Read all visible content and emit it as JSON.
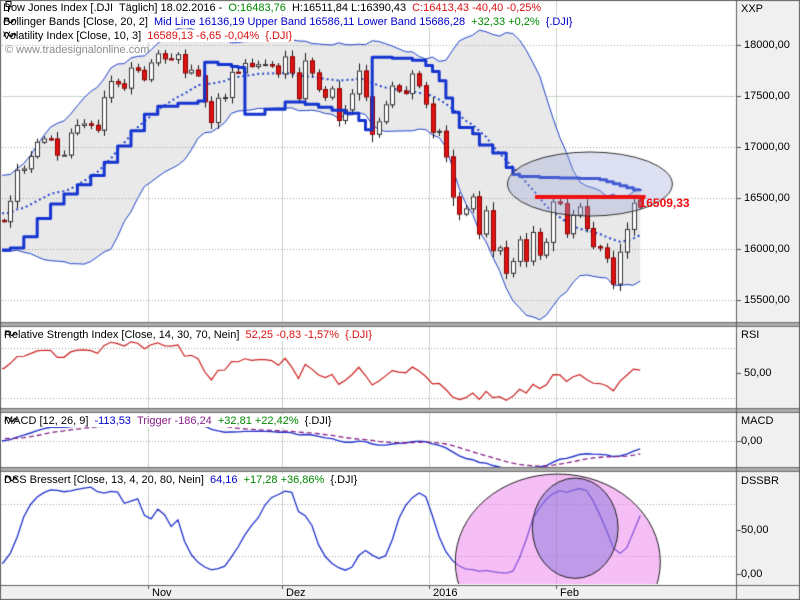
{
  "window_title": "Dow Jones Index [.DJI] Tradesignal Chart",
  "header": {
    "lines": [
      {
        "name": "symbol-header",
        "icon": "pin-icon",
        "segments": [
          {
            "t": "Dow Jones Index [.DJI  Täglich] 18.02.2016 - ",
            "c": "#000000"
          },
          {
            "t": "O:16483,76 ",
            "c": "#008800"
          },
          {
            "t": "H:16511,84 L:16390,43 ",
            "c": "#000000"
          },
          {
            "t": "C:16413,43 -40,40 -0,25%",
            "c": "#dd1111"
          }
        ]
      },
      {
        "name": "bollinger-header",
        "icon": "wave-icon",
        "segments": [
          {
            "t": "Bollinger Bands [Close, 20, 2] ",
            "c": "#000000"
          },
          {
            "t": "Mid Line 16136,19 Upper Band 16586,11 Lower Band 15686,28 ",
            "c": "#0000cc"
          },
          {
            "t": "+32,33 +0,2% ",
            "c": "#008800"
          },
          {
            "t": "{.DJI}",
            "c": "#0000cc"
          }
        ]
      },
      {
        "name": "volatility-header",
        "icon": "wave-icon",
        "segments": [
          {
            "t": "Volatility Index [Close, 10, 3] ",
            "c": "#000000"
          },
          {
            "t": "16589,13 -6,65 -0,04% ",
            "c": "#dd1111"
          },
          {
            "t": "{.DJI}",
            "c": "#dd1111"
          }
        ]
      },
      {
        "name": "copyright",
        "icon": null,
        "segments": [
          {
            "t": "© www.tradesignalonline.com",
            "c": "#8a8a8a"
          }
        ]
      }
    ]
  },
  "panel_headers": {
    "rsi": {
      "name": "rsi-header",
      "icon": "wave-icon",
      "segments": [
        {
          "t": "Relative Strength Index [Close, 14, 30, 70, Nein] ",
          "c": "#000000"
        },
        {
          "t": "52,25 -0,83 -1,57% ",
          "c": "#dd1111"
        },
        {
          "t": "{.DJI}",
          "c": "#dd1111"
        }
      ]
    },
    "macd": {
      "name": "macd-header",
      "icon": "wave-icon",
      "segments": [
        {
          "t": "MACD [12, 26, 9] ",
          "c": "#000000"
        },
        {
          "t": "-113,53 ",
          "c": "#0000cc"
        },
        {
          "t": "Trigger -186,24 ",
          "c": "#882288"
        },
        {
          "t": "+32,81 +22,42% ",
          "c": "#008800"
        },
        {
          "t": "{.DJI}",
          "c": "#000000"
        }
      ]
    },
    "dss": {
      "name": "dss-header",
      "icon": "wave-icon",
      "segments": [
        {
          "t": "DSS Bressert [Close, 13, 4, 20, 80, Nein] ",
          "c": "#000000"
        },
        {
          "t": "64,16 ",
          "c": "#0000cc"
        },
        {
          "t": "+17,28 +36,86% ",
          "c": "#008800"
        },
        {
          "t": "{.DJI}",
          "c": "#000000"
        }
      ]
    }
  },
  "axes": {
    "price": {
      "corner_label": "XXP",
      "ticks": [
        {
          "t": "18000,00",
          "v": 18000
        },
        {
          "t": "17500,00",
          "v": 17500
        },
        {
          "t": "17000,00",
          "v": 17000
        },
        {
          "t": "16500,00",
          "v": 16500
        },
        {
          "t": "16000,00",
          "v": 16000
        },
        {
          "t": "15500,00",
          "v": 15500
        }
      ]
    },
    "rsi": {
      "label": "RSI",
      "ticks": [
        {
          "t": "50,00",
          "v": 50
        }
      ],
      "dotted_levels": [
        70,
        30
      ]
    },
    "macd": {
      "label": "MACD",
      "ticks": [
        {
          "t": "0,00",
          "v": 0
        }
      ],
      "dotted_levels": [
        0
      ]
    },
    "dss": {
      "label": "DSSBR",
      "ticks": [
        {
          "t": "50,00",
          "v": 50
        },
        {
          "t": "0,00",
          "v": 0
        }
      ],
      "dotted_levels": [
        80,
        20
      ]
    },
    "time": {
      "labels": [
        {
          "t": "Nov",
          "i": 22.5
        },
        {
          "t": "Dez",
          "i": 42.5
        },
        {
          "t": "2016",
          "i": 64.5
        },
        {
          "t": "Feb",
          "i": 83.5
        }
      ]
    }
  },
  "chart_data": {
    "type": "candlestick",
    "symbol": "Dow Jones Index [.DJI] Täglich",
    "date_last": "18.02.2016",
    "last_ohlc": {
      "o": 16483.76,
      "h": 16511.84,
      "l": 16390.43,
      "c": 16413.43
    },
    "price_range": [
      15500,
      18000
    ],
    "seed_closes": [
      16058,
      16351,
      16375,
      16102,
      16492,
      16253,
      16330,
      16433,
      16370,
      16599,
      16740,
      16675,
      16385,
      16510,
      16330,
      16280,
      16201,
      16315,
      16002,
      16049
    ],
    "closes": [
      16285,
      16272,
      16472,
      16776,
      16790,
      16912,
      17051,
      17084,
      17082,
      16924,
      16925,
      17141,
      17216,
      17231,
      17217,
      17169,
      17489,
      17647,
      17623,
      17581,
      17779,
      17756,
      17664,
      17829,
      17918,
      17868,
      17863,
      17910,
      17730,
      17758,
      17702,
      17448,
      17245,
      17483,
      17490,
      17737,
      17732,
      17824,
      17793,
      17812,
      17813,
      17798,
      17720,
      17888,
      17730,
      17478,
      17848,
      17730,
      17568,
      17492,
      17575,
      17265,
      17369,
      17525,
      17749,
      17496,
      17129,
      17252,
      17418,
      17603,
      17552,
      17529,
      17721,
      17604,
      17425,
      17149,
      17159,
      16907,
      16514,
      16346,
      16398,
      16516,
      16151,
      16379,
      15988,
      16016,
      15767,
      15883,
      16094,
      15885,
      16167,
      15944,
      16070,
      16466,
      16449,
      16154,
      16337,
      16417,
      16205,
      16027,
      16014,
      15915,
      15660,
      15974,
      16196,
      16454,
      16413
    ],
    "indicators": {
      "bollinger": {
        "period": 20,
        "mult": 2,
        "mid": 16136.19,
        "upper": 16586.11,
        "lower": 15686.28
      },
      "volatility_index": {
        "period": 10,
        "mult": 3,
        "value": 16589.13
      },
      "rsi": {
        "period": 14,
        "value": 52.25
      },
      "macd": {
        "fast": 12,
        "slow": 26,
        "signal": 9,
        "value": -113.53,
        "trigger": -186.24
      },
      "dss": {
        "p1": 13,
        "p2": 4,
        "low": 20,
        "high": 80,
        "value": 64.16
      }
    },
    "volatility_line": [
      [
        0,
        15990
      ],
      [
        2,
        16010
      ],
      [
        4,
        16120
      ],
      [
        6,
        16300
      ],
      [
        8,
        16440
      ],
      [
        10,
        16540
      ],
      [
        12,
        16630
      ],
      [
        14,
        16720
      ],
      [
        16,
        16850
      ],
      [
        18,
        17010
      ],
      [
        20,
        17160
      ],
      [
        22,
        17320
      ],
      [
        24,
        17400
      ],
      [
        27,
        17430
      ],
      [
        30,
        17450
      ],
      [
        31,
        17830
      ],
      [
        33,
        17810
      ],
      [
        35,
        17790
      ],
      [
        36,
        17780
      ],
      [
        37,
        17320
      ],
      [
        40,
        17370
      ],
      [
        43,
        17440
      ],
      [
        46,
        17420
      ],
      [
        48,
        17390
      ],
      [
        50,
        17360
      ],
      [
        52,
        17330
      ],
      [
        54,
        17260
      ],
      [
        55,
        17170
      ],
      [
        56,
        17880
      ],
      [
        59,
        17870
      ],
      [
        62,
        17850
      ],
      [
        64,
        17800
      ],
      [
        65,
        17740
      ],
      [
        66,
        17650
      ],
      [
        67,
        17480
      ],
      [
        68,
        17340
      ],
      [
        69,
        17190
      ],
      [
        71,
        17130
      ],
      [
        72,
        17020
      ],
      [
        74,
        16940
      ],
      [
        76,
        16800
      ],
      [
        77,
        16730
      ],
      [
        78,
        16710
      ],
      [
        81,
        16700
      ],
      [
        84,
        16695
      ],
      [
        87,
        16690
      ],
      [
        90,
        16680
      ],
      [
        91,
        16660
      ],
      [
        92,
        16640
      ],
      [
        93,
        16620
      ],
      [
        94,
        16600
      ],
      [
        95,
        16580
      ],
      [
        96,
        16589
      ]
    ],
    "annotations": {
      "hline": {
        "value": 16509.33,
        "label": "16509,33",
        "i_from": 80.3,
        "i_to": 96.8,
        "color": "#ee1111"
      },
      "ellipse_main": {
        "ci": 88.5,
        "cv": 16637,
        "ri": 12.3,
        "rv": 314,
        "fill": "rgba(158,165,215,0.35)"
      },
      "ellipse_pink": {
        "ci": 83.7,
        "cv": 13.6,
        "ri": 15.3,
        "rv": 100,
        "fill": "rgba(235,125,235,0.5)"
      },
      "ellipse_purple": {
        "ci": 86.3,
        "cv": 52,
        "ri": 6.4,
        "rv": 57,
        "fill": "rgba(115,105,215,0.42)"
      }
    },
    "colors": {
      "up_candle": "#ffffff",
      "down_candle": "#e01212",
      "wick": "#1a1a1a",
      "band_line": "#2244cc",
      "band_fill": "#e9e9e9",
      "mid_dotted": "#2244cc",
      "volatility": "#1535cf",
      "rsi_line": "#cc2222",
      "macd_line": "#2233cc",
      "trigger_line": "#882288",
      "dss_line": "#2233cc",
      "grid_dot": "#a8a8a8",
      "grid_month": "#c6d6c6",
      "axis_bg": "#f0f0f0",
      "divider": "#ababab",
      "border": "#5f5f5f"
    }
  }
}
